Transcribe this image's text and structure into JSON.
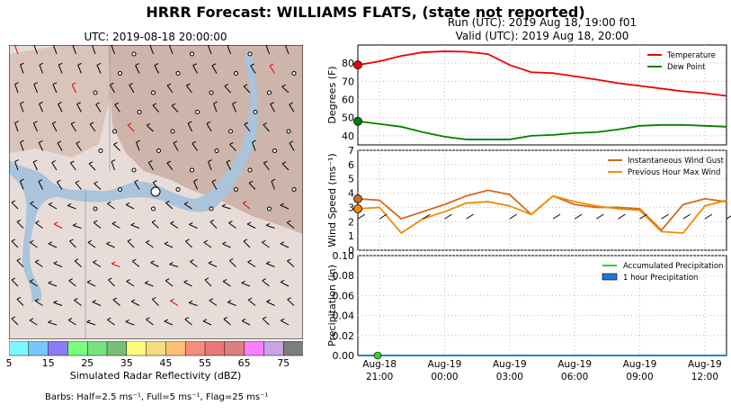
{
  "suptitle": "HRRR Forecast: WILLIAMS FLATS, (state not reported)",
  "map": {
    "title": "UTC: 2019-08-18 20:00:00",
    "colorbar_label": "Simulated Radar Reflectivity (dBZ)",
    "colorbar_ticks": [
      "5",
      "15",
      "25",
      "35",
      "45",
      "55",
      "65",
      "75"
    ],
    "colorbar_colors": [
      "#7ef8ff",
      "#79c6ff",
      "#8a7cf2",
      "#79ff7c",
      "#78e27c",
      "#7bbe7a",
      "#fdfd7c",
      "#f4dd7f",
      "#fbc077",
      "#f78c7b",
      "#e87878",
      "#dc7e7e",
      "#fb7efc",
      "#c9a3e5",
      "#7d7d7d"
    ],
    "barb_note": "Barbs: Half=2.5 ms⁻¹, Full=5 ms⁻¹, Flag=25 ms⁻¹"
  },
  "run": {
    "line1": "Run (UTC): 2019 Aug 18, 19:00 f01",
    "line2": "Valid (UTC): 2019 Aug 18, 20:00"
  },
  "chart_data": [
    {
      "type": "line",
      "x": [
        "Aug-18 20:00",
        "21:00",
        "22:00",
        "23:00",
        "Aug-19 00:00",
        "01:00",
        "02:00",
        "03:00",
        "04:00",
        "05:00",
        "06:00",
        "07:00",
        "08:00",
        "09:00",
        "10:00",
        "11:00",
        "12:00",
        "13:00"
      ],
      "series": [
        {
          "name": "Temperature",
          "color": "#ee0000",
          "values": [
            79,
            81,
            84,
            86,
            86.5,
            86.3,
            85,
            79,
            75,
            74.5,
            72.8,
            71,
            69,
            67.5,
            66,
            64.5,
            63.5,
            62
          ]
        },
        {
          "name": "Dew Point",
          "color": "#007f00",
          "values": [
            48,
            46.5,
            45,
            42,
            39.5,
            38,
            38,
            38,
            40,
            40.5,
            41.5,
            42,
            43.5,
            45.5,
            46,
            46,
            45.5,
            45
          ]
        }
      ],
      "ylabel": "Degrees (F)",
      "ylim": [
        35,
        90
      ],
      "yticks": [
        40,
        50,
        60,
        70,
        80
      ],
      "legend": "top-right",
      "grid": true
    },
    {
      "type": "line",
      "x": [
        "Aug-18 20:00",
        "21:00",
        "22:00",
        "23:00",
        "Aug-19 00:00",
        "01:00",
        "02:00",
        "03:00",
        "04:00",
        "05:00",
        "06:00",
        "07:00",
        "08:00",
        "09:00",
        "10:00",
        "11:00",
        "12:00",
        "13:00"
      ],
      "series": [
        {
          "name": "Instantaneous Wind Gust",
          "color": "#cf6a1e",
          "values": [
            3.6,
            3.5,
            2.2,
            2.7,
            3.2,
            3.8,
            4.2,
            3.9,
            2.5,
            3.8,
            3.2,
            3.0,
            3.0,
            2.9,
            1.4,
            3.2,
            3.6,
            3.4
          ]
        },
        {
          "name": "Previous Hour Max Wind",
          "color": "#f08c00",
          "values": [
            2.9,
            3.0,
            1.2,
            2.2,
            2.7,
            3.3,
            3.4,
            3.1,
            2.5,
            3.8,
            3.4,
            3.1,
            2.9,
            2.8,
            1.3,
            1.2,
            3.1,
            3.5
          ]
        }
      ],
      "ylabel": "Wind Speed (ms⁻¹)",
      "ylim": [
        0,
        7
      ],
      "yticks": [
        0,
        1,
        2,
        3,
        4,
        5,
        6,
        7
      ],
      "legend": "top-right",
      "grid": true
    },
    {
      "type": "bar",
      "x": [
        "Aug-18 20:00",
        "21:00",
        "22:00",
        "23:00",
        "Aug-19 00:00",
        "01:00",
        "02:00",
        "03:00",
        "04:00",
        "05:00",
        "06:00",
        "07:00",
        "08:00",
        "09:00",
        "10:00",
        "11:00",
        "12:00",
        "13:00"
      ],
      "series": [
        {
          "name": "Accumulated Precipitation",
          "color": "#33cc33",
          "values": [
            0,
            0,
            0,
            0,
            0,
            0,
            0,
            0,
            0,
            0,
            0,
            0,
            0,
            0,
            0,
            0,
            0,
            0
          ]
        },
        {
          "name": "1 hour Precipitation",
          "color": "#1f77d4",
          "values": [
            0,
            0,
            0,
            0,
            0,
            0,
            0,
            0,
            0,
            0,
            0,
            0,
            0,
            0,
            0,
            0,
            0,
            0
          ]
        }
      ],
      "ylabel": "Precipitation (in)",
      "ylim": [
        0,
        0.1
      ],
      "yticks": [
        "0.00",
        "0.02",
        "0.04",
        "0.06",
        "0.08",
        "0.10"
      ],
      "xtick_labels": [
        [
          "Aug-18",
          "21:00"
        ],
        [
          "Aug-19",
          "00:00"
        ],
        [
          "Aug-19",
          "03:00"
        ],
        [
          "Aug-19",
          "06:00"
        ],
        [
          "Aug-19",
          "09:00"
        ],
        [
          "Aug-19",
          "12:00"
        ]
      ],
      "legend": "top-right",
      "grid": true
    }
  ]
}
